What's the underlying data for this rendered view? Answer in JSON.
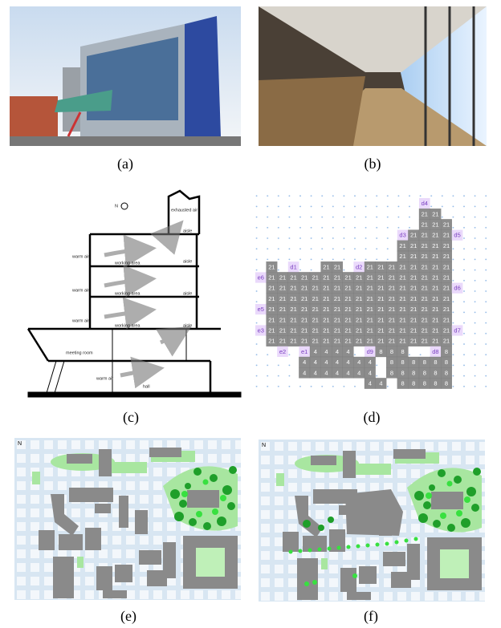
{
  "captions": [
    "(a)",
    "(b)",
    "(c)",
    "(d)",
    "(e)",
    "(f)"
  ],
  "section": {
    "north": "N",
    "exhaust": "exhausted air",
    "aisles": [
      "aisle",
      "aisle",
      "aisle",
      "aisle"
    ],
    "working_areas": [
      "working area",
      "working area",
      "working area"
    ],
    "warm_air": [
      "warm air",
      "warm air",
      "warm air",
      "warm air"
    ],
    "meeting_room": "meeting room",
    "hall": "hall"
  },
  "grid": {
    "rows": [
      [
        null,
        null,
        null,
        null,
        null,
        null,
        null,
        null,
        null,
        null,
        null,
        null,
        null,
        null,
        null,
        "d4",
        null,
        null,
        null
      ],
      [
        null,
        null,
        null,
        null,
        null,
        null,
        null,
        null,
        null,
        null,
        null,
        null,
        null,
        null,
        null,
        "21",
        "21",
        null,
        null
      ],
      [
        null,
        null,
        null,
        null,
        null,
        null,
        null,
        null,
        null,
        null,
        null,
        null,
        null,
        null,
        null,
        "21",
        "21",
        "21",
        null
      ],
      [
        null,
        null,
        null,
        null,
        null,
        null,
        null,
        null,
        null,
        null,
        null,
        null,
        null,
        "d3",
        "21",
        "21",
        "21",
        "21",
        "d5"
      ],
      [
        null,
        null,
        null,
        null,
        null,
        null,
        null,
        null,
        null,
        null,
        null,
        null,
        null,
        "21",
        "21",
        "21",
        "21",
        "21",
        null
      ],
      [
        null,
        null,
        null,
        null,
        null,
        null,
        null,
        null,
        null,
        null,
        null,
        null,
        null,
        "21",
        "21",
        "21",
        "21",
        "21",
        null
      ],
      [
        null,
        "21",
        null,
        "d1",
        null,
        null,
        "21",
        "21",
        null,
        "d2",
        "21",
        "21",
        "21",
        "21",
        "21",
        "21",
        "21",
        "21",
        null
      ],
      [
        "e6",
        "21",
        "21",
        "21",
        "21",
        "21",
        "21",
        "21",
        "21",
        "21",
        "21",
        "21",
        "21",
        "21",
        "21",
        "21",
        "21",
        "21",
        null
      ],
      [
        null,
        "21",
        "21",
        "21",
        "21",
        "21",
        "21",
        "21",
        "21",
        "21",
        "21",
        "21",
        "21",
        "21",
        "21",
        "21",
        "21",
        "21",
        "d6"
      ],
      [
        null,
        "21",
        "21",
        "21",
        "21",
        "21",
        "21",
        "21",
        "21",
        "21",
        "21",
        "21",
        "21",
        "21",
        "21",
        "21",
        "21",
        "21",
        null
      ],
      [
        "e5",
        "21",
        "21",
        "21",
        "21",
        "21",
        "21",
        "21",
        "21",
        "21",
        "21",
        "21",
        "21",
        "21",
        "21",
        "21",
        "21",
        "21",
        null
      ],
      [
        null,
        "21",
        "21",
        "21",
        "21",
        "21",
        "21",
        "21",
        "21",
        "21",
        "21",
        "21",
        "21",
        "21",
        "21",
        "21",
        "21",
        "21",
        null
      ],
      [
        "e3",
        "21",
        "21",
        "21",
        "21",
        "21",
        "21",
        "21",
        "21",
        "21",
        "21",
        "21",
        "21",
        "21",
        "21",
        "21",
        "21",
        "21",
        "d7"
      ],
      [
        null,
        "21",
        "21",
        "21",
        "21",
        "21",
        "21",
        "21",
        "21",
        "21",
        "21",
        "21",
        "21",
        "21",
        "21",
        "21",
        "21",
        "21",
        null
      ],
      [
        null,
        null,
        "e2",
        null,
        "e1",
        "4",
        "4",
        "4",
        "4",
        null,
        "d9",
        "8",
        "8",
        "8",
        null,
        null,
        "d8",
        "8",
        null
      ],
      [
        null,
        null,
        null,
        null,
        "4",
        "4",
        "4",
        "4",
        "4",
        "4",
        "4",
        null,
        "8",
        "8",
        "8",
        "8",
        "8",
        "8",
        null
      ],
      [
        null,
        null,
        null,
        null,
        "4",
        "4",
        "4",
        "4",
        "4",
        "4",
        "4",
        null,
        "8",
        "8",
        "8",
        "8",
        "8",
        "8",
        null
      ],
      [
        null,
        null,
        null,
        null,
        null,
        null,
        null,
        null,
        null,
        null,
        "4",
        "4",
        null,
        "8",
        "8",
        "8",
        "8",
        "8",
        null
      ]
    ]
  },
  "map_e": {
    "north": "N"
  },
  "map_f": {
    "north": "N"
  }
}
